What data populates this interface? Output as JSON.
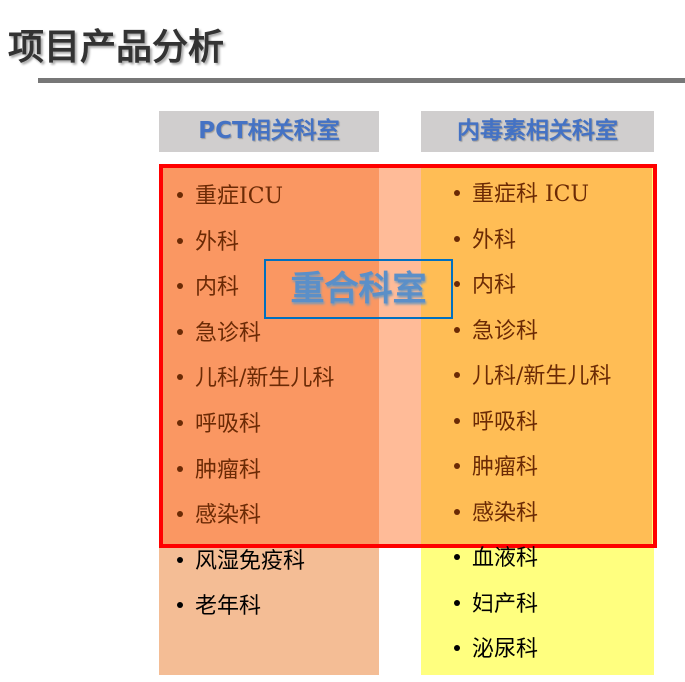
{
  "title": "项目产品分析",
  "left": {
    "header": "PCT相关科室",
    "items": [
      "重症ICU",
      "外科",
      "内科",
      "急诊科",
      "儿科/新生儿科",
      "呼吸科",
      "肿瘤科",
      "感染科",
      "风湿免疫科",
      "老年科"
    ],
    "overlap_count": 8
  },
  "right": {
    "header": "内毒素相关科室",
    "items": [
      "重症科 ICU",
      "外科",
      "内科",
      "急诊科",
      "儿科/新生儿科",
      "呼吸科",
      "肿瘤科",
      "感染科",
      "血液科",
      "妇产科",
      "泌尿科"
    ],
    "overlap_count": 8
  },
  "overlap_label": "重合科室",
  "colors": {
    "left_bg": "#f4bd95",
    "right_bg": "#ffff7f",
    "overlap_border": "#ff0000",
    "header_text": "#4472c4"
  }
}
